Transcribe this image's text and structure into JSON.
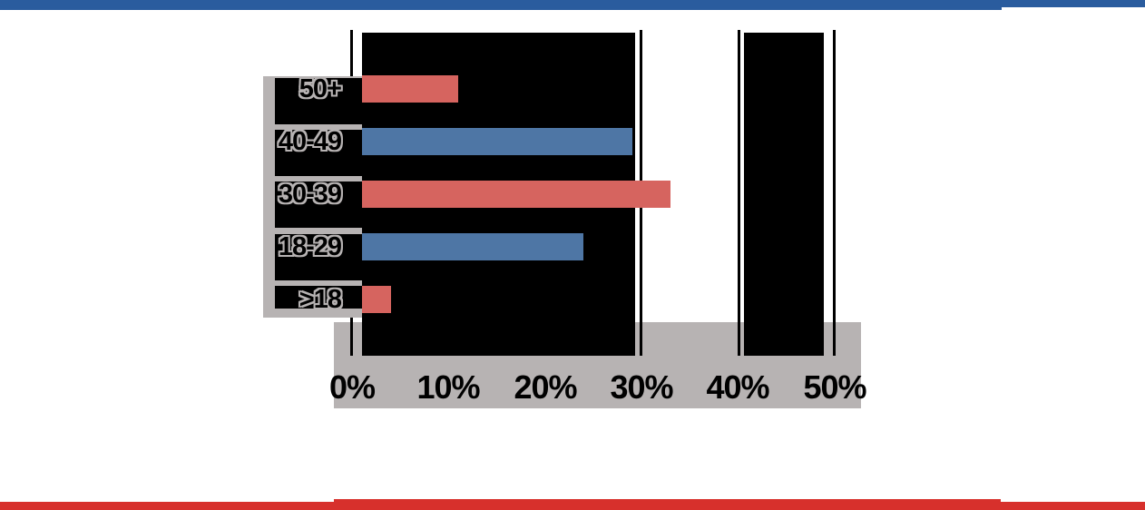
{
  "chart_data": {
    "type": "bar",
    "orientation": "horizontal",
    "categories": [
      "50+",
      "40-49",
      "30-39",
      "18-29",
      ">18"
    ],
    "values": [
      10,
      28,
      32,
      23,
      3
    ],
    "value_unit": "%",
    "x_ticks": [
      "0%",
      "10%",
      "20%",
      "30%",
      "40%",
      "50%"
    ],
    "xlim": [
      0,
      50
    ],
    "grid": "vertical-lines-at-0-30-40-50",
    "legend": "none",
    "title": "",
    "bar_colors_alternating": [
      "#d6645f",
      "#4e76a5"
    ]
  },
  "colors": {
    "header_blue": "#2a5c9e",
    "footer_red": "#d7302c",
    "bar_red": "#d6645f",
    "bar_blue": "#4e76a5",
    "panel_gray": "#b7b3b3",
    "plot_black": "#000000",
    "halo_gray": "#b7b3b3",
    "page_white": "#ffffff"
  }
}
